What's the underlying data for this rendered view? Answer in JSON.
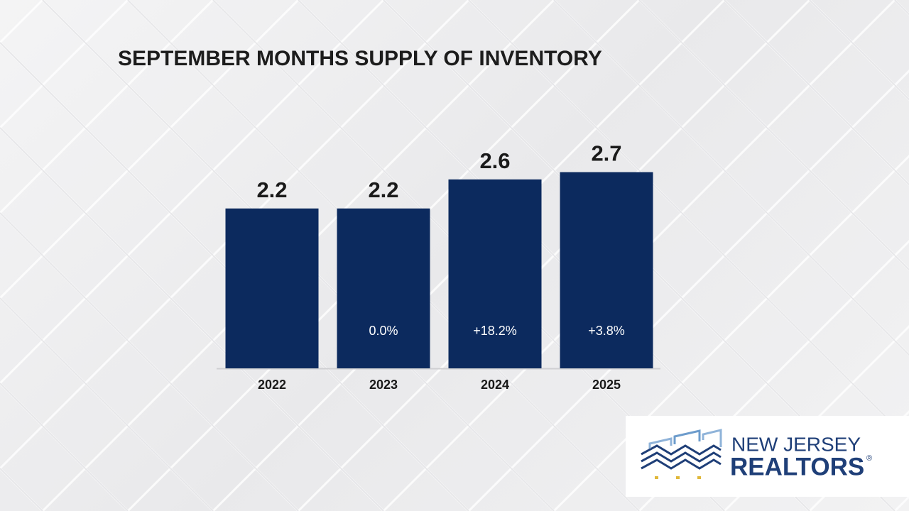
{
  "chart_data": {
    "type": "bar",
    "title": "SEPTEMBER MONTHS SUPPLY OF INVENTORY",
    "categories": [
      "2022",
      "2023",
      "2024",
      "2025"
    ],
    "values": [
      2.2,
      2.2,
      2.6,
      2.7
    ],
    "changes": [
      null,
      0.0,
      18.2,
      3.8
    ],
    "change_labels": [
      null,
      "0.0%",
      "+18.2%",
      "+3.8%"
    ],
    "color": "#0c2a5e"
  },
  "logo": {
    "line1": "NEW JERSEY",
    "line2": "REALTORS",
    "mark": "®"
  }
}
